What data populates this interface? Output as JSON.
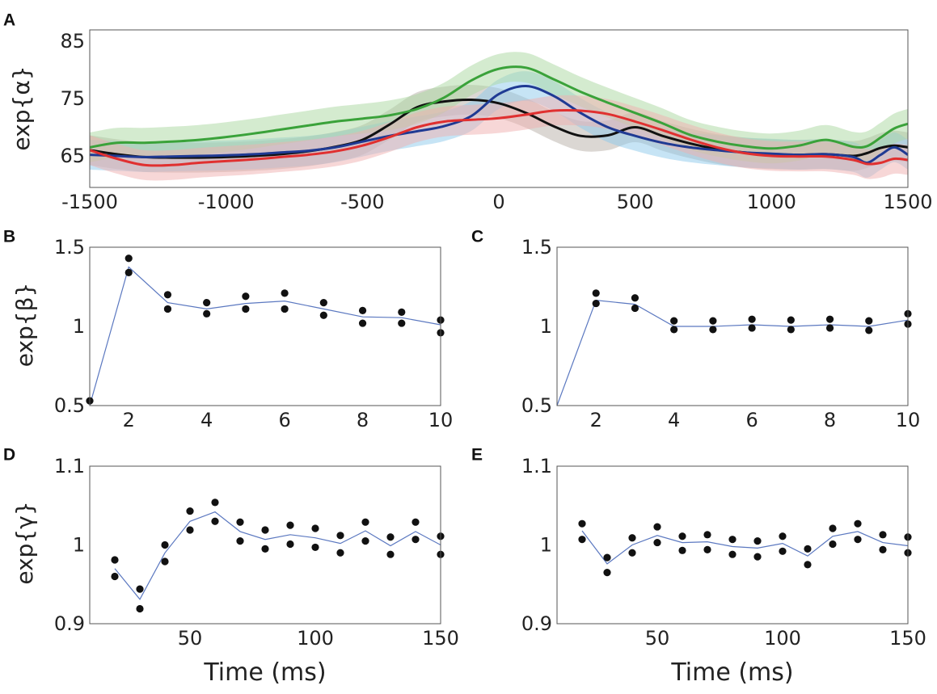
{
  "chart_data": [
    {
      "panel": "A",
      "type": "line",
      "ylabel": "exp{α}",
      "xlabel": "",
      "xlim": [
        -1500,
        1500
      ],
      "ylim": [
        59.5,
        87
      ],
      "xticks": [
        -1500,
        -1000,
        -500,
        0,
        500,
        1000,
        1500
      ],
      "yticks": [
        65,
        75,
        85
      ],
      "series": [
        {
          "name": "black",
          "color": "#111111",
          "band_color": "#b8b0a8",
          "x": [
            -1500,
            -1400,
            -1300,
            -1200,
            -1100,
            -1000,
            -900,
            -800,
            -700,
            -600,
            -500,
            -400,
            -300,
            -200,
            -100,
            0,
            100,
            200,
            300,
            400,
            500,
            600,
            700,
            800,
            900,
            1000,
            1100,
            1200,
            1300,
            1350,
            1400,
            1450,
            1500
          ],
          "y": [
            66,
            65.3,
            64.8,
            64.7,
            64.7,
            64.8,
            65,
            65.3,
            65.8,
            66.6,
            67.8,
            70.5,
            73.5,
            74.5,
            74.8,
            74.2,
            72.5,
            70.2,
            68.5,
            68.6,
            70,
            68.5,
            67.2,
            66.2,
            65.6,
            65.3,
            65.2,
            65.3,
            65,
            65.5,
            66.4,
            66.8,
            66.5
          ]
        },
        {
          "name": "blue",
          "color": "#1f3a93",
          "band_color": "#8ec9ec",
          "x": [
            -1500,
            -1400,
            -1300,
            -1200,
            -1100,
            -1000,
            -900,
            -800,
            -700,
            -600,
            -500,
            -400,
            -300,
            -200,
            -100,
            0,
            100,
            200,
            300,
            400,
            500,
            600,
            700,
            800,
            900,
            1000,
            1100,
            1200,
            1300,
            1350,
            1400,
            1450,
            1500
          ],
          "y": [
            65.2,
            65,
            64.8,
            64.9,
            65,
            65.1,
            65.3,
            65.6,
            65.9,
            66.5,
            67.5,
            68.5,
            69.3,
            70.2,
            72,
            75.8,
            77.2,
            75.5,
            72.5,
            70,
            68.5,
            67.3,
            66.5,
            66,
            65.6,
            65.4,
            65.2,
            65.3,
            64.8,
            63.8,
            65.2,
            66.5,
            65.2
          ]
        },
        {
          "name": "green",
          "color": "#3aa23a",
          "band_color": "#a9d8a0",
          "x": [
            -1500,
            -1400,
            -1300,
            -1200,
            -1100,
            -1000,
            -900,
            -800,
            -700,
            -600,
            -500,
            -400,
            -300,
            -200,
            -100,
            0,
            100,
            200,
            300,
            400,
            500,
            600,
            700,
            800,
            900,
            1000,
            1100,
            1200,
            1300,
            1350,
            1400,
            1450,
            1500
          ],
          "y": [
            66.5,
            67.3,
            67.3,
            67.5,
            67.8,
            68.3,
            68.9,
            69.6,
            70.3,
            71,
            71.5,
            72.1,
            73.2,
            75.2,
            78.2,
            80.2,
            80.4,
            78.4,
            76.2,
            74.3,
            72.5,
            70.7,
            68.7,
            67.5,
            66.7,
            66.3,
            66.8,
            67.8,
            66.6,
            66.7,
            68.2,
            69.8,
            70.6
          ]
        },
        {
          "name": "red",
          "color": "#e03030",
          "band_color": "#f0b0b0",
          "x": [
            -1500,
            -1400,
            -1300,
            -1200,
            -1100,
            -1000,
            -900,
            -800,
            -700,
            -600,
            -500,
            -400,
            -300,
            -200,
            -100,
            0,
            100,
            200,
            300,
            400,
            500,
            600,
            700,
            800,
            900,
            1000,
            1100,
            1200,
            1300,
            1350,
            1400,
            1450,
            1500
          ],
          "y": [
            66,
            64.5,
            63.4,
            63.4,
            63.8,
            64.1,
            64.4,
            64.8,
            65.2,
            65.8,
            66.8,
            68.3,
            70,
            71,
            71.3,
            71.6,
            72.2,
            72.9,
            72.9,
            72.3,
            71,
            69.5,
            67.9,
            66.5,
            65.5,
            65,
            64.9,
            64.9,
            64.3,
            63.6,
            63.8,
            64.5,
            64.3
          ]
        }
      ]
    },
    {
      "panel": "B",
      "type": "scatter",
      "ylabel": "exp{β}",
      "xlabel": "",
      "xlim": [
        1,
        10
      ],
      "ylim": [
        0.5,
        1.5
      ],
      "xticks": [
        2,
        4,
        6,
        8,
        10
      ],
      "yticks": [
        0.5,
        1,
        1.5
      ],
      "ytick_labels": [
        "0.5",
        "1",
        "1.5"
      ],
      "line": {
        "x": [
          1,
          2,
          3,
          4,
          5,
          6,
          7,
          8,
          9,
          10
        ],
        "y": [
          0.5,
          1.375,
          1.15,
          1.11,
          1.145,
          1.16,
          1.11,
          1.06,
          1.055,
          1.01
        ]
      },
      "points": {
        "x": [
          1,
          2,
          2,
          3,
          3,
          4,
          4,
          5,
          5,
          6,
          6,
          7,
          7,
          8,
          8,
          9,
          9,
          10,
          10
        ],
        "y": [
          0.53,
          1.43,
          1.34,
          1.2,
          1.11,
          1.15,
          1.08,
          1.19,
          1.11,
          1.21,
          1.11,
          1.15,
          1.07,
          1.1,
          1.02,
          1.09,
          1.02,
          1.04,
          0.96
        ]
      }
    },
    {
      "panel": "C",
      "type": "scatter",
      "ylabel": "",
      "xlabel": "",
      "xlim": [
        1,
        10
      ],
      "ylim": [
        0.5,
        1.5
      ],
      "xticks": [
        2,
        4,
        6,
        8,
        10
      ],
      "yticks": [
        0.5,
        1,
        1.5
      ],
      "ytick_labels": [
        "0.5",
        "1",
        "1.5"
      ],
      "line": {
        "x": [
          1,
          2,
          3,
          4,
          5,
          6,
          7,
          8,
          9,
          10
        ],
        "y": [
          0.5,
          1.165,
          1.14,
          1.0,
          1.0,
          1.01,
          1.0,
          1.01,
          1.0,
          1.04
        ]
      },
      "points": {
        "x": [
          2,
          2,
          3,
          3,
          4,
          4,
          5,
          5,
          6,
          6,
          7,
          7,
          8,
          8,
          9,
          9,
          10,
          10
        ],
        "y": [
          1.21,
          1.145,
          1.18,
          1.115,
          1.035,
          0.98,
          1.035,
          0.98,
          1.045,
          0.99,
          1.04,
          0.98,
          1.045,
          0.99,
          1.035,
          0.975,
          1.08,
          1.015
        ]
      }
    },
    {
      "panel": "D",
      "type": "scatter",
      "ylabel": "exp{γ}",
      "xlabel": "Time (ms)",
      "xlim": [
        10,
        150
      ],
      "ylim": [
        0.9,
        1.1
      ],
      "xticks": [
        50,
        100,
        150
      ],
      "yticks": [
        0.9,
        1,
        1.1
      ],
      "ytick_labels": [
        "0.9",
        "1",
        "1.1"
      ],
      "line": {
        "x": [
          20,
          30,
          40,
          50,
          60,
          70,
          80,
          90,
          100,
          110,
          120,
          130,
          140,
          150
        ],
        "y": [
          0.97,
          0.931,
          0.99,
          1.03,
          1.042,
          1.017,
          1.007,
          1.013,
          1.009,
          1.002,
          1.018,
          0.999,
          1.017,
          1.0
        ]
      },
      "points": {
        "x": [
          20,
          20,
          30,
          30,
          40,
          40,
          50,
          50,
          60,
          60,
          70,
          70,
          80,
          80,
          90,
          90,
          100,
          100,
          110,
          110,
          120,
          120,
          130,
          130,
          140,
          140,
          150,
          150
        ],
        "y": [
          0.981,
          0.96,
          0.944,
          0.919,
          1.0,
          0.979,
          1.043,
          1.019,
          1.054,
          1.03,
          1.029,
          1.005,
          1.019,
          0.995,
          1.025,
          1.001,
          1.021,
          0.997,
          1.012,
          0.99,
          1.029,
          1.005,
          1.01,
          0.988,
          1.029,
          1.007,
          1.011,
          0.988
        ]
      }
    },
    {
      "panel": "E",
      "type": "scatter",
      "ylabel": "",
      "xlabel": "Time (ms)",
      "xlim": [
        10,
        150
      ],
      "ylim": [
        0.9,
        1.1
      ],
      "xticks": [
        50,
        100,
        150
      ],
      "yticks": [
        0.9,
        1,
        1.1
      ],
      "ytick_labels": [
        "0.9",
        "1",
        "1.1"
      ],
      "line": {
        "x": [
          20,
          30,
          40,
          50,
          60,
          70,
          80,
          90,
          100,
          110,
          120,
          130,
          140,
          150
        ],
        "y": [
          1.018,
          0.976,
          1.0,
          1.012,
          1.003,
          1.004,
          0.998,
          0.996,
          1.002,
          0.986,
          1.011,
          1.017,
          1.003,
          0.999
        ]
      },
      "points": {
        "x": [
          20,
          20,
          30,
          30,
          40,
          40,
          50,
          50,
          60,
          60,
          70,
          70,
          80,
          80,
          90,
          90,
          100,
          100,
          110,
          110,
          120,
          120,
          130,
          130,
          140,
          140,
          150,
          150
        ],
        "y": [
          1.027,
          1.007,
          0.984,
          0.965,
          1.009,
          0.99,
          1.023,
          1.003,
          1.011,
          0.993,
          1.013,
          0.994,
          1.007,
          0.988,
          1.005,
          0.985,
          1.011,
          0.992,
          0.995,
          0.975,
          1.021,
          1.001,
          1.027,
          1.007,
          1.013,
          0.994,
          1.01,
          0.99
        ]
      }
    }
  ]
}
